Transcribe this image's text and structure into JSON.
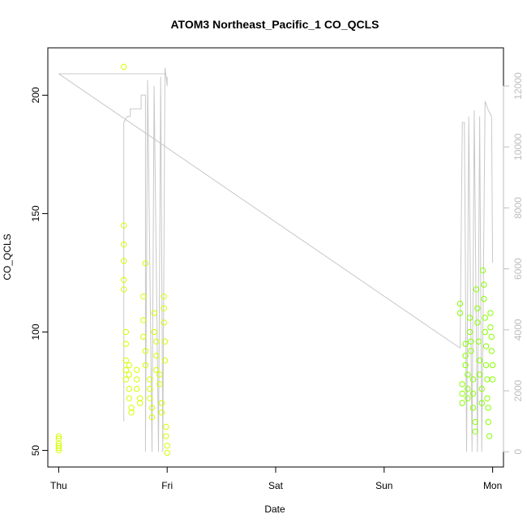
{
  "chart_data": {
    "type": "scatter",
    "title": "ATOM3 Northeast_Pacific_1 CO_QCLS",
    "xlabel": "Date",
    "ylabel": "CO_QCLS",
    "x_ticks": [
      "Thu",
      "Fri",
      "Sat",
      "Sun",
      "Mon"
    ],
    "x_range_days": [
      -0.1,
      4.1
    ],
    "ylim": [
      43,
      220
    ],
    "y_ticks": [
      50,
      100,
      150,
      200
    ],
    "y2lim": [
      -500,
      13250
    ],
    "y2_ticks": [
      0,
      2000,
      4000,
      6000,
      8000,
      10000,
      12000
    ],
    "grid": false,
    "colors": {
      "points_early": "#d4ff00",
      "points_late": "#88ff00",
      "altitude_line": "#c8c8c8",
      "axis": "#000000",
      "right_axis": "#bdbdbd"
    },
    "series": [
      {
        "type": "line",
        "axis": "right",
        "points_day_value": [
          [
            0.0,
            12400
          ],
          [
            0.99,
            12400
          ],
          [
            0.995,
            12700
          ],
          [
            1.01,
            12400
          ],
          [
            0.6,
            11050
          ],
          [
            0.64,
            11200
          ],
          [
            0.7,
            11250
          ],
          [
            0.78,
            11700
          ],
          [
            0.8,
            11700
          ],
          [
            3.7,
            3400
          ],
          [
            3.9,
            11300
          ],
          [
            3.98,
            11100
          ]
        ]
      },
      {
        "type": "scatter",
        "axis": "left",
        "points_day_value": [
          [
            0.0,
            50
          ],
          [
            0.0,
            51
          ],
          [
            0.0,
            52
          ],
          [
            0.0,
            53
          ],
          [
            0.0,
            55
          ],
          [
            0.0,
            56
          ],
          [
            0.6,
            212
          ],
          [
            0.6,
            145
          ],
          [
            0.6,
            137
          ],
          [
            0.6,
            130
          ],
          [
            0.6,
            122
          ],
          [
            0.6,
            118
          ],
          [
            0.62,
            100
          ],
          [
            0.62,
            95
          ],
          [
            0.62,
            88
          ],
          [
            0.62,
            84
          ],
          [
            0.62,
            80
          ],
          [
            0.65,
            86
          ],
          [
            0.65,
            82
          ],
          [
            0.65,
            76
          ],
          [
            0.65,
            72
          ],
          [
            0.67,
            68
          ],
          [
            0.67,
            66
          ],
          [
            0.72,
            84
          ],
          [
            0.72,
            80
          ],
          [
            0.72,
            76
          ],
          [
            0.75,
            72
          ],
          [
            0.75,
            70
          ],
          [
            0.78,
            115
          ],
          [
            0.78,
            105
          ],
          [
            0.78,
            98
          ],
          [
            0.8,
            92
          ],
          [
            0.8,
            86
          ],
          [
            0.8,
            129
          ],
          [
            0.84,
            80
          ],
          [
            0.84,
            76
          ],
          [
            0.84,
            72
          ],
          [
            0.86,
            68
          ],
          [
            0.86,
            64
          ],
          [
            0.88,
            108
          ],
          [
            0.88,
            100
          ],
          [
            0.9,
            96
          ],
          [
            0.9,
            90
          ],
          [
            0.9,
            84
          ],
          [
            0.93,
            82
          ],
          [
            0.93,
            78
          ],
          [
            0.95,
            70
          ],
          [
            0.95,
            66
          ],
          [
            0.97,
            115
          ],
          [
            0.97,
            110
          ],
          [
            0.97,
            104
          ],
          [
            0.98,
            96
          ],
          [
            0.98,
            88
          ],
          [
            0.99,
            60
          ],
          [
            0.99,
            56
          ],
          [
            1.0,
            52
          ],
          [
            1.0,
            49
          ],
          [
            3.7,
            112
          ],
          [
            3.7,
            108
          ],
          [
            3.72,
            78
          ],
          [
            3.72,
            74
          ],
          [
            3.72,
            70
          ],
          [
            3.75,
            95
          ],
          [
            3.75,
            90
          ],
          [
            3.75,
            86
          ],
          [
            3.77,
            82
          ],
          [
            3.77,
            76
          ],
          [
            3.77,
            72
          ],
          [
            3.79,
            106
          ],
          [
            3.79,
            100
          ],
          [
            3.8,
            96
          ],
          [
            3.8,
            92
          ],
          [
            3.82,
            80
          ],
          [
            3.82,
            74
          ],
          [
            3.82,
            68
          ],
          [
            3.84,
            62
          ],
          [
            3.84,
            58
          ],
          [
            3.85,
            118
          ],
          [
            3.86,
            110
          ],
          [
            3.86,
            104
          ],
          [
            3.87,
            96
          ],
          [
            3.88,
            88
          ],
          [
            3.88,
            82
          ],
          [
            3.9,
            76
          ],
          [
            3.9,
            70
          ],
          [
            3.91,
            126
          ],
          [
            3.92,
            120
          ],
          [
            3.92,
            114
          ],
          [
            3.93,
            106
          ],
          [
            3.93,
            100
          ],
          [
            3.94,
            94
          ],
          [
            3.94,
            86
          ],
          [
            3.95,
            80
          ],
          [
            3.95,
            72
          ],
          [
            3.96,
            68
          ],
          [
            3.96,
            62
          ],
          [
            3.97,
            56
          ],
          [
            3.98,
            108
          ],
          [
            3.98,
            102
          ],
          [
            3.99,
            98
          ],
          [
            3.99,
            92
          ],
          [
            4.0,
            86
          ],
          [
            4.0,
            80
          ]
        ]
      }
    ]
  }
}
